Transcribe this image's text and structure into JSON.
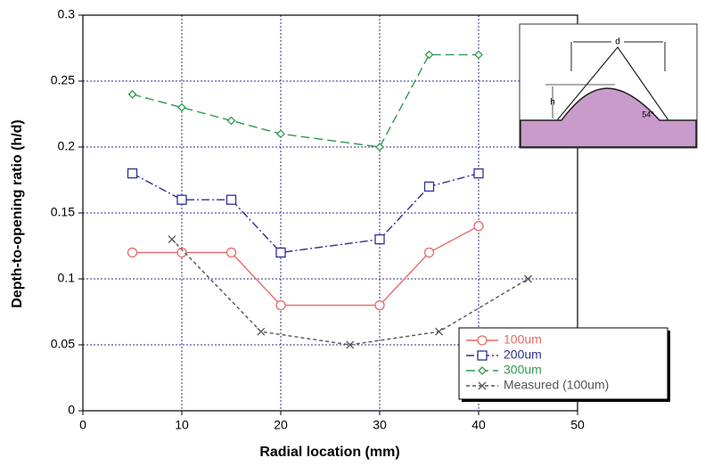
{
  "chart_data": {
    "type": "line",
    "x_label": "Radial location (mm)",
    "y_label": "Depth-to-opening ratio (h/d)",
    "xlim": [
      0,
      50
    ],
    "xticks": [
      0,
      10,
      20,
      30,
      40,
      50
    ],
    "ylim": [
      0,
      0.3
    ],
    "yticks": [
      0,
      0.05,
      0.1,
      0.15,
      0.2,
      0.25,
      0.3
    ],
    "grid": true,
    "legend_position": "lower right",
    "series": [
      {
        "name": "100um",
        "color": "#e8686a",
        "dash": "solid",
        "marker": "circle",
        "x": [
          5,
          10,
          15,
          20,
          30,
          35,
          40
        ],
        "values": [
          0.12,
          0.12,
          0.12,
          0.08,
          0.08,
          0.12,
          0.14
        ]
      },
      {
        "name": "200um",
        "color": "#2e3192",
        "dash": "dashdot",
        "marker": "square",
        "x": [
          5,
          10,
          15,
          20,
          30,
          35,
          40
        ],
        "values": [
          0.18,
          0.16,
          0.16,
          0.12,
          0.13,
          0.17,
          0.18
        ]
      },
      {
        "name": "300um",
        "color": "#2e9a4e",
        "dash": "longdash",
        "marker": "diamond",
        "x": [
          5,
          10,
          15,
          20,
          30,
          35,
          40
        ],
        "values": [
          0.24,
          0.23,
          0.22,
          0.21,
          0.2,
          0.27,
          0.27
        ]
      },
      {
        "name": "Measured (100um)",
        "color": "#555555",
        "dash": "dash",
        "marker": "x",
        "x": [
          9,
          18,
          27,
          36,
          45
        ],
        "values": [
          0.13,
          0.06,
          0.05,
          0.06,
          0.1
        ]
      }
    ],
    "inset_labels": [
      "d",
      "h",
      "54°"
    ]
  }
}
